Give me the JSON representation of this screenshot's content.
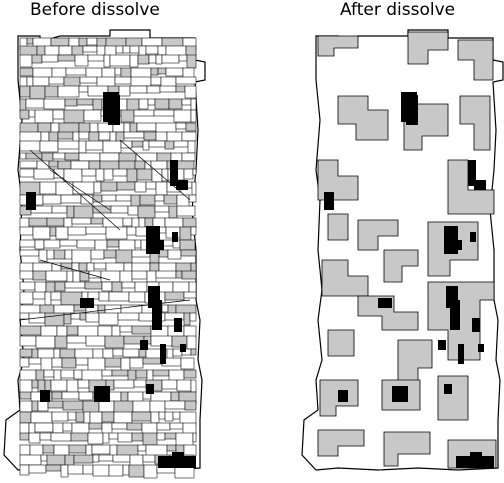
{
  "panels": [
    {
      "id": "before",
      "title": "Before dissolve"
    },
    {
      "id": "after",
      "title": "After dissolve"
    }
  ],
  "colors": {
    "background": "#ffffff",
    "polygon_white": "#ffffff",
    "polygon_gray": "#c8c8c8",
    "polygon_black": "#000000",
    "outline": "#000000"
  }
}
